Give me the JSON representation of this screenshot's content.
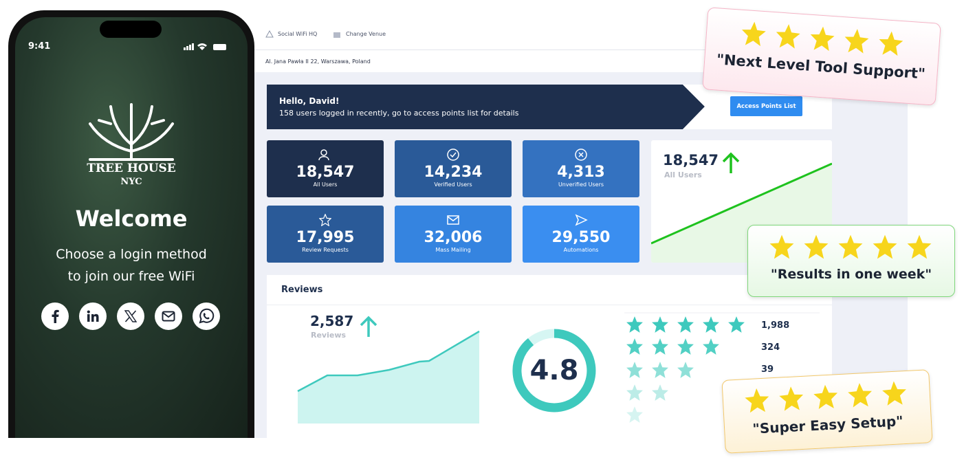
{
  "phone": {
    "time": "9:41",
    "brand": "TREE HOUSE",
    "brand_sub": "NYC",
    "welcome": "Welcome",
    "subtitle_lines": [
      "Choose a login method",
      "to join our free WiFi"
    ]
  },
  "dashboard": {
    "nav": [
      "Social WiFi HQ",
      "Change Venue"
    ],
    "address": "Al. Jana Pawła II 22, Warszawa, Poland",
    "banner": {
      "greeting": "Hello, David!",
      "message": "158 users logged in recently, go to access points list for details",
      "button": "Access Points List"
    },
    "stats": [
      {
        "value": "18,547",
        "label": "All Users"
      },
      {
        "value": "14,234",
        "label": "Verified Users"
      },
      {
        "value": "4,313",
        "label": "Unverified Users"
      },
      {
        "value": "17,995",
        "label": "Review Requests"
      },
      {
        "value": "32,006",
        "label": "Mass Mailing"
      },
      {
        "value": "29,550",
        "label": "Automations"
      }
    ],
    "users_chart": {
      "value": "18,547",
      "label": "All Users"
    },
    "reviews": {
      "title": "Reviews",
      "count": "2,587",
      "count_label": "Reviews",
      "rating": "4.8",
      "star_counts": [
        "1,988",
        "324",
        "39"
      ]
    }
  },
  "testimonials": [
    "\"Next Level Tool Support\"",
    "\"Results in one week\"",
    "\"Super Easy Setup\""
  ]
}
